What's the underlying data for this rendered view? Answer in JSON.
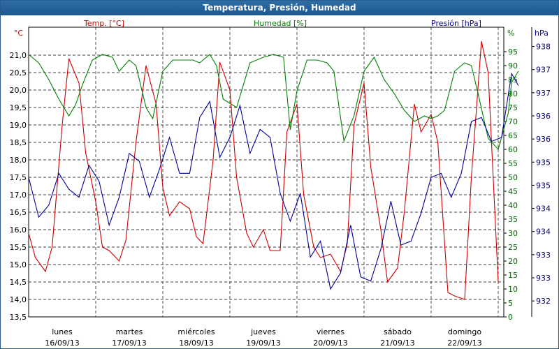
{
  "window": {
    "title": "Temperatura, Presión, Humedad"
  },
  "chart_data": {
    "type": "line",
    "title": "Temperatura, Presión, Humedad",
    "grid": true,
    "colors": {
      "temp": "#cc0000",
      "hum": "#008000",
      "pres": "#000099",
      "title_bg": "#1d5690"
    },
    "axes": {
      "left": {
        "unit": "°C",
        "series_label": "Temp. [°C]",
        "range": [
          13.5,
          21.5
        ],
        "ticks": [
          "13,5",
          "14,0",
          "14,5",
          "15,0",
          "15,5",
          "16,0",
          "16,5",
          "17,0",
          "17,5",
          "18,0",
          "18,5",
          "19,0",
          "19,5",
          "20,0",
          "20,5",
          "21,0"
        ]
      },
      "mid": {
        "unit": "%",
        "series_label": "Humedad [%]",
        "range": [
          0,
          100
        ],
        "ticks": [
          "0",
          "5",
          "10",
          "15",
          "20",
          "25",
          "30",
          "35",
          "40",
          "45",
          "50",
          "55",
          "60",
          "65",
          "70",
          "75",
          "80",
          "85",
          "90",
          "95"
        ]
      },
      "right": {
        "unit": "hPa",
        "series_label": "Presión [hPa]",
        "range": [
          931.5,
          938.5
        ],
        "ticks": [
          "932",
          "933",
          "933",
          "934",
          "934",
          "935",
          "935",
          "936",
          "936",
          "937",
          "937",
          "938"
        ]
      }
    },
    "x_labels": [
      {
        "day": "lunes",
        "date": "16/09/13"
      },
      {
        "day": "martes",
        "date": "17/09/13"
      },
      {
        "day": "miércoles",
        "date": "18/09/13"
      },
      {
        "day": "jueves",
        "date": "19/09/13"
      },
      {
        "day": "viernes",
        "date": "20/09/13"
      },
      {
        "day": "sábado",
        "date": "21/09/13"
      },
      {
        "day": "domingo",
        "date": "22/09/13"
      }
    ],
    "x_range": [
      0,
      7.5
    ],
    "series": [
      {
        "name": "Temp. [°C]",
        "axis": "left",
        "color": "#cc0000",
        "x": [
          0,
          0.1,
          0.25,
          0.35,
          0.5,
          0.6,
          0.75,
          0.85,
          1.0,
          1.1,
          1.2,
          1.35,
          1.45,
          1.6,
          1.75,
          1.9,
          2.0,
          2.1,
          2.25,
          2.4,
          2.5,
          2.6,
          2.75,
          2.85,
          3.0,
          3.1,
          3.25,
          3.35,
          3.5,
          3.6,
          3.75,
          3.85,
          4.0,
          4.1,
          4.25,
          4.35,
          4.5,
          4.65,
          4.75,
          4.85,
          5.0,
          5.1,
          5.25,
          5.35,
          5.5,
          5.6,
          5.75,
          5.85,
          6.0,
          6.1,
          6.25,
          6.35,
          6.5,
          6.6,
          6.75,
          6.85,
          7.0
        ],
        "values": [
          15.9,
          15.2,
          14.8,
          15.5,
          19.0,
          20.9,
          20.2,
          18.2,
          16.8,
          15.5,
          15.4,
          15.1,
          15.7,
          18.5,
          20.7,
          19.6,
          17.2,
          16.4,
          16.8,
          16.6,
          15.8,
          15.6,
          18.0,
          20.8,
          20.0,
          17.5,
          15.9,
          15.5,
          16.0,
          15.4,
          15.4,
          18.8,
          19.6,
          17.0,
          15.5,
          15.2,
          15.3,
          14.8,
          15.6,
          19.0,
          20.2,
          17.8,
          16.0,
          14.5,
          14.9,
          16.5,
          19.6,
          18.8,
          19.3,
          18.5,
          14.2,
          14.1,
          14.0,
          17.5,
          21.4,
          20.5,
          14.5
        ]
      },
      {
        "name": "Humedad [%]",
        "axis": "mid",
        "color": "#008000",
        "x": [
          0,
          0.15,
          0.3,
          0.45,
          0.6,
          0.7,
          0.8,
          0.95,
          1.1,
          1.25,
          1.35,
          1.5,
          1.6,
          1.75,
          1.85,
          2.0,
          2.15,
          2.3,
          2.45,
          2.55,
          2.7,
          2.8,
          2.9,
          3.1,
          3.3,
          3.5,
          3.65,
          3.8,
          3.9,
          4.0,
          4.15,
          4.3,
          4.45,
          4.55,
          4.7,
          4.85,
          5.0,
          5.15,
          5.3,
          5.45,
          5.6,
          5.75,
          5.9,
          6.0,
          6.1,
          6.2,
          6.35,
          6.5,
          6.6,
          6.7,
          6.85,
          7.0,
          7.15,
          7.2,
          7.3
        ],
        "values": [
          94,
          91,
          85,
          78,
          72,
          76,
          83,
          92,
          94,
          93,
          88,
          92,
          90,
          75,
          71,
          88,
          92,
          92,
          92,
          91,
          94,
          90,
          78,
          75,
          91,
          93,
          94,
          93,
          67,
          81,
          92,
          92,
          91,
          88,
          63,
          72,
          88,
          93,
          85,
          80,
          74,
          70,
          72,
          71,
          72,
          74,
          88,
          91,
          90,
          80,
          64,
          60,
          73,
          84,
          88
        ]
      },
      {
        "name": "Presión [hPa]",
        "axis": "right",
        "color": "#000099",
        "x": [
          0,
          0.15,
          0.3,
          0.45,
          0.6,
          0.75,
          0.9,
          1.05,
          1.2,
          1.35,
          1.5,
          1.65,
          1.8,
          1.95,
          2.1,
          2.25,
          2.4,
          2.55,
          2.7,
          2.85,
          3.0,
          3.15,
          3.3,
          3.45,
          3.6,
          3.75,
          3.9,
          4.05,
          4.2,
          4.35,
          4.5,
          4.65,
          4.8,
          4.95,
          5.1,
          5.25,
          5.4,
          5.55,
          5.7,
          5.85,
          6.0,
          6.15,
          6.3,
          6.45,
          6.6,
          6.75,
          6.9,
          7.05,
          7.2,
          7.3
        ],
        "values": [
          935.0,
          934.0,
          934.3,
          935.1,
          934.7,
          934.5,
          935.3,
          934.9,
          933.8,
          934.5,
          935.6,
          935.4,
          934.5,
          935.2,
          936.0,
          935.1,
          935.1,
          936.5,
          936.9,
          935.5,
          936.0,
          936.8,
          935.6,
          936.2,
          936.0,
          934.6,
          933.9,
          934.6,
          933.0,
          933.4,
          932.2,
          932.6,
          933.8,
          932.5,
          932.4,
          933.2,
          934.4,
          933.3,
          933.4,
          934.1,
          935.0,
          935.1,
          934.5,
          935.1,
          936.4,
          936.5,
          935.9,
          936.0,
          937.6,
          937.3
        ]
      }
    ]
  }
}
